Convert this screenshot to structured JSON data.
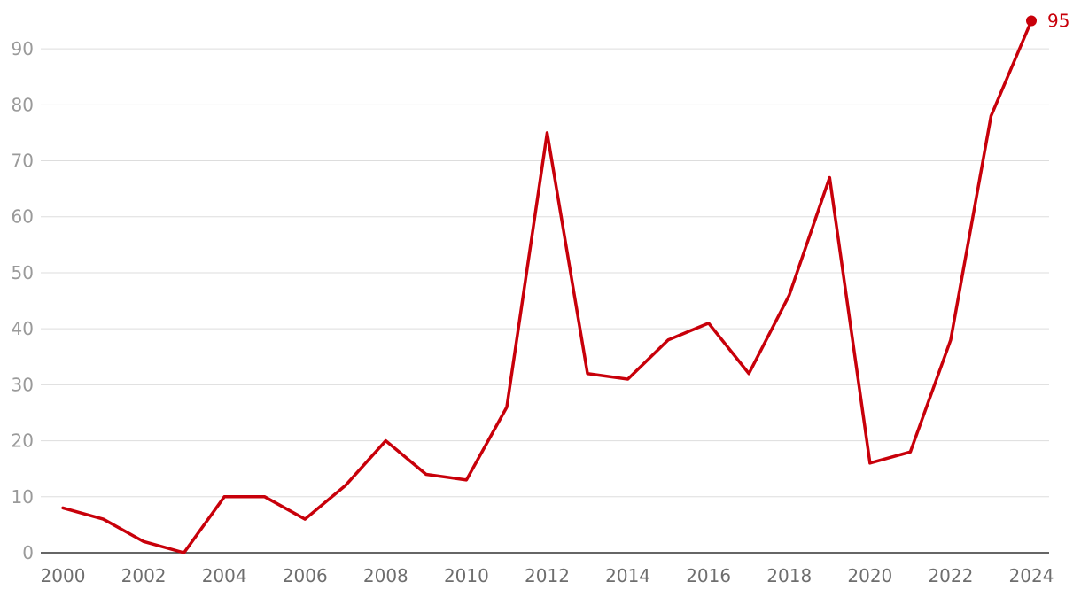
{
  "chart_data": {
    "type": "line",
    "title": "",
    "xlabel": "",
    "ylabel": "",
    "x": [
      2000,
      2001,
      2002,
      2003,
      2004,
      2005,
      2006,
      2007,
      2008,
      2009,
      2010,
      2011,
      2012,
      2013,
      2014,
      2015,
      2016,
      2017,
      2018,
      2019,
      2020,
      2021,
      2022,
      2023,
      2024
    ],
    "series": [
      {
        "values": [
          8,
          6,
          2,
          0,
          10,
          10,
          6,
          12,
          20,
          14,
          13,
          26,
          75,
          32,
          31,
          38,
          41,
          32,
          46,
          67,
          16,
          18,
          38,
          78,
          95
        ]
      }
    ],
    "xlim": [
      2000,
      2024
    ],
    "ylim": [
      0,
      95
    ],
    "x_ticks": [
      "2000",
      "2002",
      "2004",
      "2006",
      "2008",
      "2010",
      "2012",
      "2014",
      "2016",
      "2018",
      "2020",
      "2022",
      "2024"
    ],
    "y_ticks": [
      "0",
      "10",
      "20",
      "30",
      "40",
      "50",
      "60",
      "70",
      "80",
      "90"
    ],
    "grid": true,
    "legend": "none",
    "end_label": "95",
    "colors": {
      "line": "#c8000a",
      "grid": "#dddddd",
      "axis": "#333333",
      "y_tick": "#9a9a9a",
      "x_tick": "#6e6e6e"
    }
  }
}
